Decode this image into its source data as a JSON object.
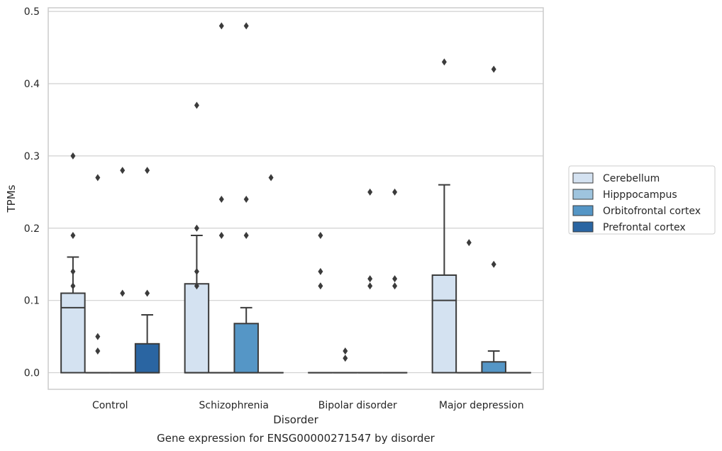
{
  "chart_data": {
    "type": "box",
    "title": "",
    "caption": "Gene expression for ENSG00000271547 by disorder",
    "xlabel": "Disorder",
    "ylabel": "TPMs",
    "ylim": [
      -0.023,
      0.505
    ],
    "yticks": [
      "0.0",
      "0.1",
      "0.2",
      "0.3",
      "0.4",
      "0.5"
    ],
    "grid": "horizontal",
    "legend_position": "right",
    "categories": [
      "Control",
      "Schizophrenia",
      "Bipolar disorder",
      "Major depression"
    ],
    "series": [
      {
        "name": "Cerebellum",
        "color": "#d4e2f1",
        "boxes": [
          {
            "q1": 0,
            "median": 0.09,
            "q3": 0.11,
            "whisker_low": 0,
            "whisker_high": 0.16,
            "outliers": [
              0.3,
              0.19,
              0.14,
              0.12
            ]
          },
          {
            "q1": 0,
            "median": 0,
            "q3": 0.123,
            "whisker_low": 0,
            "whisker_high": 0.19,
            "outliers": [
              0.37,
              0.2,
              0.14,
              0.12
            ]
          },
          {
            "q1": 0,
            "median": 0,
            "q3": 0,
            "whisker_low": 0,
            "whisker_high": 0,
            "outliers": [
              0.19,
              0.14,
              0.12
            ]
          },
          {
            "q1": 0,
            "median": 0.1,
            "q3": 0.135,
            "whisker_low": 0,
            "whisker_high": 0.26,
            "outliers": [
              0.43
            ]
          }
        ]
      },
      {
        "name": "Hipppocampus",
        "color": "#9ec4de",
        "boxes": [
          {
            "q1": 0,
            "median": 0,
            "q3": 0,
            "whisker_low": 0,
            "whisker_high": 0,
            "outliers": [
              0.27,
              0.05,
              0.03
            ]
          },
          {
            "q1": 0,
            "median": 0,
            "q3": 0,
            "whisker_low": 0,
            "whisker_high": 0,
            "outliers": [
              0.48,
              0.24,
              0.19
            ]
          },
          {
            "q1": 0,
            "median": 0,
            "q3": 0,
            "whisker_low": 0,
            "whisker_high": 0,
            "outliers": [
              0.03,
              0.02
            ]
          },
          {
            "q1": 0,
            "median": 0,
            "q3": 0,
            "whisker_low": 0,
            "whisker_high": 0,
            "outliers": [
              0.18
            ]
          }
        ]
      },
      {
        "name": "Orbitofrontal cortex",
        "color": "#5596c6",
        "boxes": [
          {
            "q1": 0,
            "median": 0,
            "q3": 0,
            "whisker_low": 0,
            "whisker_high": 0,
            "outliers": [
              0.28,
              0.11
            ]
          },
          {
            "q1": 0,
            "median": 0,
            "q3": 0.068,
            "whisker_low": 0,
            "whisker_high": 0.09,
            "outliers": [
              0.48,
              0.24,
              0.19
            ]
          },
          {
            "q1": 0,
            "median": 0,
            "q3": 0,
            "whisker_low": 0,
            "whisker_high": 0,
            "outliers": [
              0.25,
              0.13,
              0.12
            ]
          },
          {
            "q1": 0,
            "median": 0,
            "q3": 0.015,
            "whisker_low": 0,
            "whisker_high": 0.03,
            "outliers": [
              0.42,
              0.15
            ]
          }
        ]
      },
      {
        "name": "Prefrontal cortex",
        "color": "#2a65a2",
        "boxes": [
          {
            "q1": 0,
            "median": 0,
            "q3": 0.04,
            "whisker_low": 0,
            "whisker_high": 0.08,
            "outliers": [
              0.28,
              0.11
            ]
          },
          {
            "q1": 0,
            "median": 0,
            "q3": 0,
            "whisker_low": 0,
            "whisker_high": 0,
            "outliers": [
              0.27
            ]
          },
          {
            "q1": 0,
            "median": 0,
            "q3": 0,
            "whisker_low": 0,
            "whisker_high": 0,
            "outliers": [
              0.25,
              0.13,
              0.12
            ]
          },
          {
            "q1": 0,
            "median": 0,
            "q3": 0,
            "whisker_low": 0,
            "whisker_high": 0,
            "outliers": []
          }
        ]
      }
    ]
  }
}
